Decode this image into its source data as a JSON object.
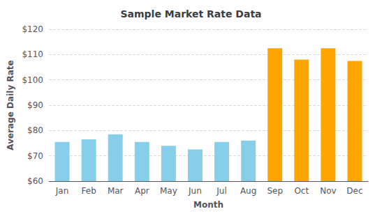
{
  "chart_data": {
    "type": "bar",
    "title": "Sample Market Rate Data",
    "xlabel": "Month",
    "ylabel": "Average Daily Rate",
    "categories": [
      "Jan",
      "Feb",
      "Mar",
      "Apr",
      "May",
      "Jun",
      "Jul",
      "Aug",
      "Sep",
      "Oct",
      "Nov",
      "Dec"
    ],
    "values": [
      75.5,
      76.5,
      78.5,
      75.5,
      74.0,
      72.5,
      75.5,
      76.0,
      112.5,
      108.0,
      112.5,
      107.5
    ],
    "colors": [
      "#87CEEB",
      "#87CEEB",
      "#87CEEB",
      "#87CEEB",
      "#87CEEB",
      "#87CEEB",
      "#87CEEB",
      "#87CEEB",
      "#FFA500",
      "#FFA500",
      "#FFA500",
      "#FFA500"
    ],
    "ylim": [
      60,
      120
    ],
    "yticks": [
      {
        "value": 60,
        "label": "$60"
      },
      {
        "value": 70,
        "label": "$70"
      },
      {
        "value": 80,
        "label": "$80"
      },
      {
        "value": 90,
        "label": "$90"
      },
      {
        "value": 100,
        "label": "$100"
      },
      {
        "value": 110,
        "label": "$110"
      },
      {
        "value": 120,
        "label": "$120"
      }
    ],
    "grid": true
  }
}
